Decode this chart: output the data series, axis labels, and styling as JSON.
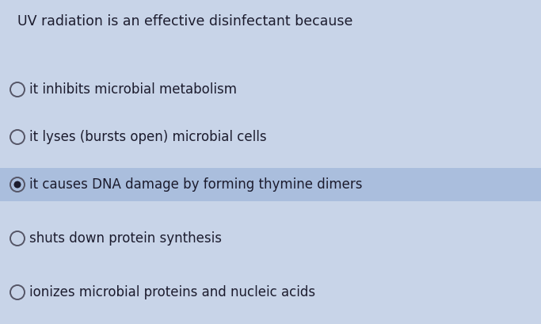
{
  "title": "UV radiation is an effective disinfectant because",
  "options": [
    {
      "text": "it inhibits microbial metabolism",
      "selected": false
    },
    {
      "text": "it lyses (bursts open) microbial cells",
      "selected": false
    },
    {
      "text": "it causes DNA damage by forming thymine dimers",
      "selected": true
    },
    {
      "text": "shuts down protein synthesis",
      "selected": false
    },
    {
      "text": "ionizes microbial proteins and nucleic acids",
      "selected": false
    }
  ],
  "bg_color": "#c8d4e8",
  "highlight_color": "#aabedd",
  "text_color": "#1c1c2e",
  "title_fontsize": 12.5,
  "option_fontsize": 12.0,
  "fig_width": 6.83,
  "fig_height": 4.09,
  "dpi": 100
}
